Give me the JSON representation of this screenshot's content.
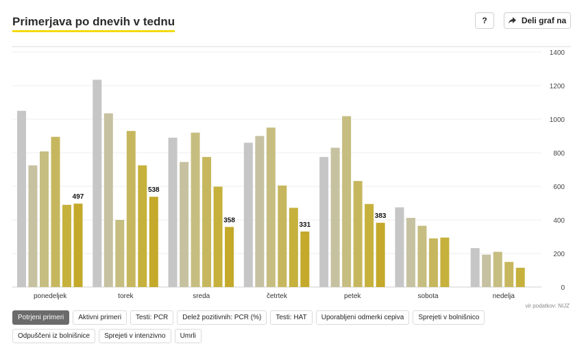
{
  "header": {
    "title": "Primerjava po dnevih v tednu",
    "help_label": "?",
    "share_label": "Deli graf na",
    "share_icon": "share-arrow-icon"
  },
  "source": "vir podatkov: NIJZ",
  "tabs": [
    {
      "label": "Potrjeni primeri",
      "active": true
    },
    {
      "label": "Aktivni primeri",
      "active": false
    },
    {
      "label": "Testi: PCR",
      "active": false
    },
    {
      "label": "Delež pozitivnih: PCR (%)",
      "active": false
    },
    {
      "label": "Testi: HAT",
      "active": false
    },
    {
      "label": "Uporabljeni odmerki cepiva",
      "active": false
    },
    {
      "label": "Sprejeti v bolnišnico",
      "active": false
    },
    {
      "label": "Odpuščeni iz bolnišnice",
      "active": false
    },
    {
      "label": "Sprejeti v intenzivno",
      "active": false
    },
    {
      "label": "Umrli",
      "active": false
    }
  ],
  "chart_data": {
    "type": "bar",
    "categories": [
      "ponedeljek",
      "torek",
      "sreda",
      "četrtek",
      "petek",
      "sobota",
      "nedelja"
    ],
    "series_colors": [
      "#c6c6c6",
      "#c6c1a0",
      "#c6bd80",
      "#c6b75f",
      "#c6b13d",
      "#c4a92a"
    ],
    "series": [
      {
        "values": [
          1050,
          1235,
          890,
          860,
          775,
          475,
          232
        ]
      },
      {
        "values": [
          725,
          1035,
          745,
          900,
          830,
          412,
          193
        ]
      },
      {
        "values": [
          808,
          400,
          920,
          950,
          1018,
          365,
          210
        ]
      },
      {
        "values": [
          895,
          930,
          775,
          605,
          632,
          290,
          150
        ]
      },
      {
        "values": [
          490,
          725,
          598,
          472,
          495,
          295,
          115
        ]
      },
      {
        "values": [
          497,
          538,
          358,
          331,
          383,
          null,
          null
        ]
      }
    ],
    "data_labels": [
      "497",
      "538",
      "358",
      "331",
      "383",
      "",
      ""
    ],
    "yticks": [
      0,
      200,
      400,
      600,
      800,
      1000,
      1200,
      1400
    ],
    "ylim": [
      0,
      1400
    ],
    "ylabel": "",
    "xlabel": "",
    "grid": true,
    "yaxis_position": "right"
  }
}
